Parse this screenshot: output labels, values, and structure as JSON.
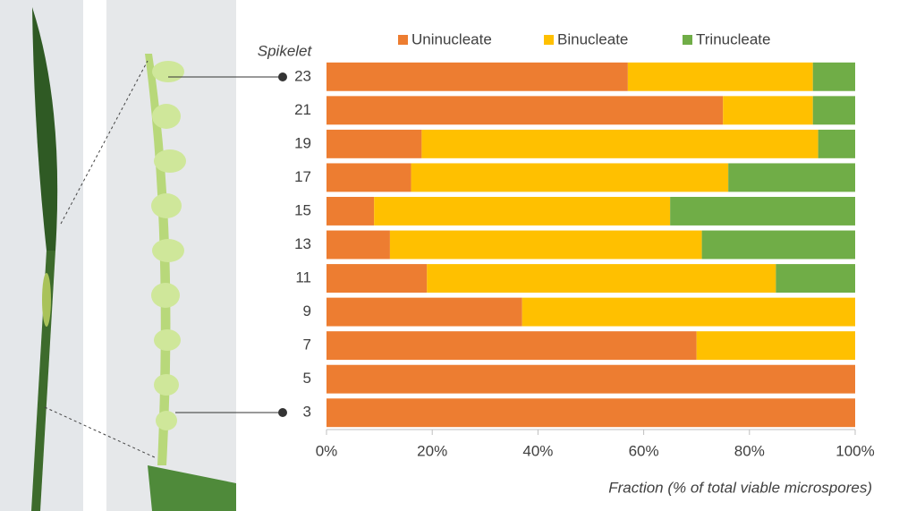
{
  "chart_data": {
    "type": "stacked-barh",
    "y_label": "Spikelet",
    "x_label": "Fraction (% of total viable microspores)",
    "categories": [
      "23",
      "21",
      "19",
      "17",
      "15",
      "13",
      "11",
      "9",
      "7",
      "5",
      "3"
    ],
    "series": [
      {
        "name": "Uninucleate",
        "color": "#ed7d31",
        "values": [
          57,
          75,
          18,
          16,
          9,
          12,
          19,
          37,
          70,
          100,
          100
        ]
      },
      {
        "name": "Binucleate",
        "color": "#ffc000",
        "values": [
          35,
          17,
          75,
          60,
          56,
          59,
          66,
          63,
          30,
          0,
          0
        ]
      },
      {
        "name": "Trinucleate",
        "color": "#70ad47",
        "values": [
          8,
          8,
          7,
          24,
          35,
          29,
          15,
          0,
          0,
          0,
          0
        ]
      }
    ],
    "xlim": [
      0,
      100
    ],
    "xticks": [
      {
        "value": 0,
        "label": "0%"
      },
      {
        "value": 20,
        "label": "20%"
      },
      {
        "value": 40,
        "label": "40%"
      },
      {
        "value": 60,
        "label": "60%"
      },
      {
        "value": 80,
        "label": "80%"
      },
      {
        "value": 100,
        "label": "100%"
      }
    ],
    "legend": "top"
  }
}
